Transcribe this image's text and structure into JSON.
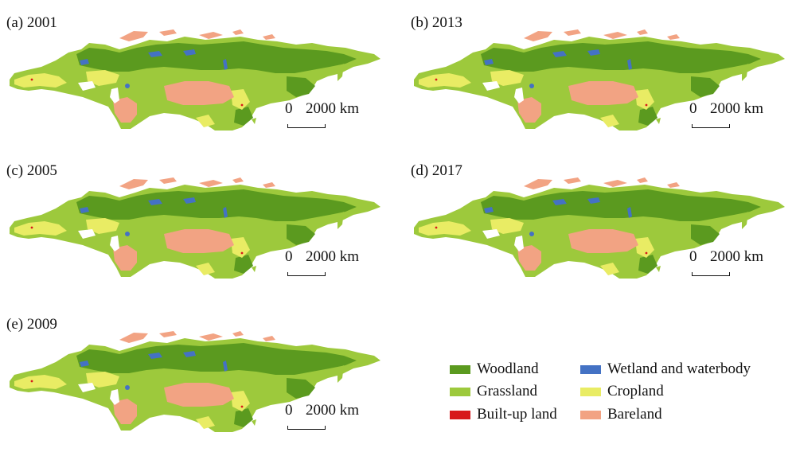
{
  "panels": [
    {
      "label": "(a) 2001"
    },
    {
      "label": "(b) 2013"
    },
    {
      "label": "(c) 2005"
    },
    {
      "label": "(d) 2017"
    },
    {
      "label": "(e) 2009"
    }
  ],
  "scale": {
    "zero": "0",
    "distance": "2000 km"
  },
  "colors": {
    "woodland": "#5b9a1f",
    "grassland": "#9dc93c",
    "builtup": "#d7191c",
    "wetland": "#4472c4",
    "cropland": "#e9ec64",
    "bareland": "#f2a383"
  },
  "legend": [
    {
      "label": "Woodland",
      "color": "#5b9a1f"
    },
    {
      "label": "Grassland",
      "color": "#9dc93c"
    },
    {
      "label": "Built-up land",
      "color": "#d7191c"
    },
    {
      "label": "Wetland and waterbody",
      "color": "#4472c4"
    },
    {
      "label": "Cropland",
      "color": "#e9ec64"
    },
    {
      "label": "Bareland",
      "color": "#f2a383"
    }
  ]
}
